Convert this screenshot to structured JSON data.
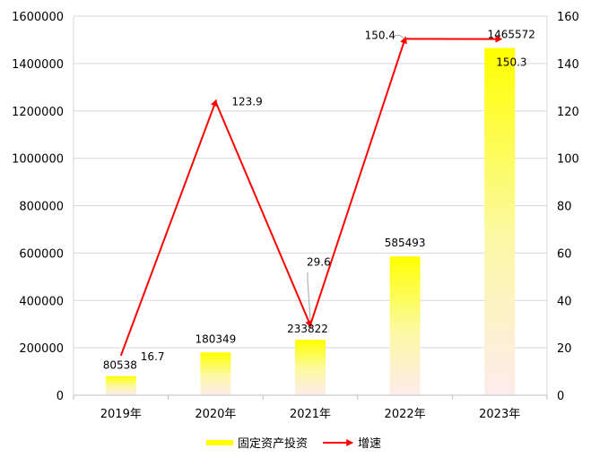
{
  "chart_data": {
    "type": "bar+line",
    "categories": [
      "2019年",
      "2020年",
      "2021年",
      "2022年",
      "2023年"
    ],
    "series": [
      {
        "name": "固定资产投资",
        "type": "bar",
        "axis": "left",
        "values": [
          80538,
          180349,
          233822,
          585493,
          1465572
        ],
        "labels": [
          "80538",
          "180349",
          "233822",
          "585493",
          "1465572"
        ]
      },
      {
        "name": "增速",
        "type": "line",
        "axis": "right",
        "values": [
          16.7,
          123.9,
          29.6,
          150.4,
          150.3
        ],
        "labels": [
          "16.7",
          "123.9",
          "29.6",
          "150.4",
          "150.3"
        ]
      }
    ],
    "y_left": {
      "range": [
        0,
        1600000
      ],
      "ticks": [
        "0",
        "200000",
        "400000",
        "600000",
        "800000",
        "1000000",
        "1200000",
        "1400000",
        "1600000"
      ]
    },
    "y_right": {
      "range": [
        0,
        160
      ],
      "ticks": [
        "0",
        "20",
        "40",
        "60",
        "80",
        "100",
        "120",
        "140",
        "160"
      ]
    },
    "grid": true,
    "legend": "bottom",
    "colors": {
      "bar": "#ffff00",
      "line": "#ff0000",
      "grid": "#d9d9d9"
    }
  }
}
